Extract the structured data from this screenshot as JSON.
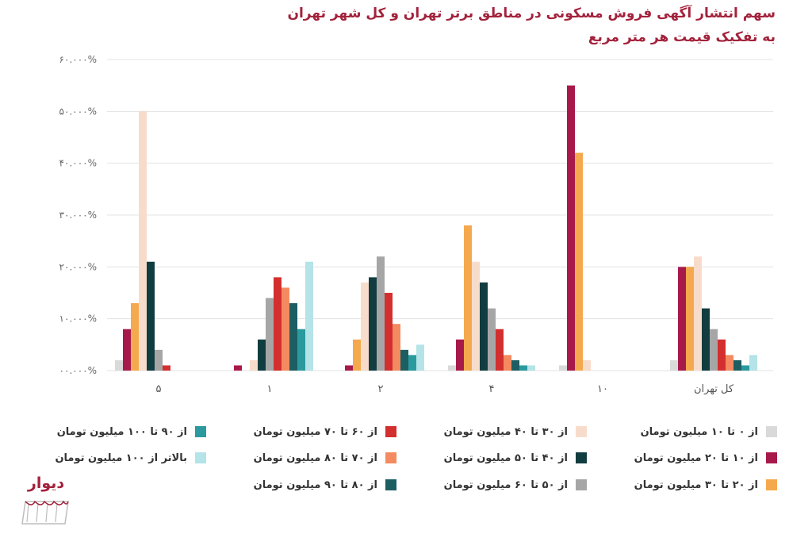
{
  "title": {
    "line1": "سهم انتشار آگهی فروش مسکونی در مناطق برتر تهران و کل شهر تهران",
    "line2": "به تفکیک قیمت هر متر مربع"
  },
  "logo": {
    "text": "دیوار"
  },
  "chart_data": {
    "type": "bar",
    "title": "سهم انتشار آگهی فروش مسکونی در مناطق برتر تهران و کل شهر تهران به تفکیک قیمت هر متر مربع",
    "categories": [
      "۵",
      "۱",
      "۲",
      "۴",
      "۱۰",
      "کل تهران"
    ],
    "y_ticks": [
      {
        "value": 0,
        "label": "۰۰.۰۰۰%"
      },
      {
        "value": 10,
        "label": "۱۰.۰۰۰%"
      },
      {
        "value": 20,
        "label": "۲۰.۰۰۰%"
      },
      {
        "value": 30,
        "label": "۳۰.۰۰۰%"
      },
      {
        "value": 40,
        "label": "۴۰.۰۰۰%"
      },
      {
        "value": 50,
        "label": "۵۰.۰۰۰%"
      },
      {
        "value": 60,
        "label": "۶۰.۰۰۰%"
      }
    ],
    "ylim": [
      0,
      60
    ],
    "grid": true,
    "legend_position": "bottom",
    "series": [
      {
        "name": "از ۰ تا ۱۰ میلیون تومان",
        "color": "#d9d9d9",
        "values": [
          2,
          0,
          0,
          1,
          1,
          2
        ]
      },
      {
        "name": "از ۱۰ تا ۲۰ میلیون تومان",
        "color": "#a8194b",
        "values": [
          8,
          1,
          1,
          6,
          55,
          20
        ]
      },
      {
        "name": "از ۲۰ تا ۳۰ میلیون تومان",
        "color": "#f5a94e",
        "values": [
          13,
          0,
          6,
          28,
          42,
          20
        ]
      },
      {
        "name": "از ۳۰ تا ۴۰ میلیون تومان",
        "color": "#f8dccb",
        "values": [
          50,
          2,
          17,
          21,
          2,
          22
        ]
      },
      {
        "name": "از ۴۰ تا ۵۰ میلیون تومان",
        "color": "#123d40",
        "values": [
          21,
          6,
          18,
          17,
          0,
          12
        ]
      },
      {
        "name": "از ۵۰ تا ۶۰ میلیون تومان",
        "color": "#a6a6a6",
        "values": [
          4,
          14,
          22,
          12,
          0,
          8
        ]
      },
      {
        "name": "از ۶۰ تا ۷۰ میلیون تومان",
        "color": "#d32f2f",
        "values": [
          1,
          18,
          15,
          8,
          0,
          6
        ]
      },
      {
        "name": "از ۷۰ تا ۸۰ میلیون تومان",
        "color": "#f48a5f",
        "values": [
          0,
          16,
          9,
          3,
          0,
          3
        ]
      },
      {
        "name": "از ۸۰ تا ۹۰ میلیون تومان",
        "color": "#1d5e63",
        "values": [
          0,
          13,
          4,
          2,
          0,
          2
        ]
      },
      {
        "name": "از ۹۰ تا ۱۰۰ میلیون تومان",
        "color": "#2a9a9e",
        "values": [
          0,
          8,
          3,
          1,
          0,
          1
        ]
      },
      {
        "name": "بالاتر از ۱۰۰ میلیون تومان",
        "color": "#b4e3e8",
        "values": [
          0,
          21,
          5,
          1,
          0,
          3
        ]
      }
    ]
  }
}
